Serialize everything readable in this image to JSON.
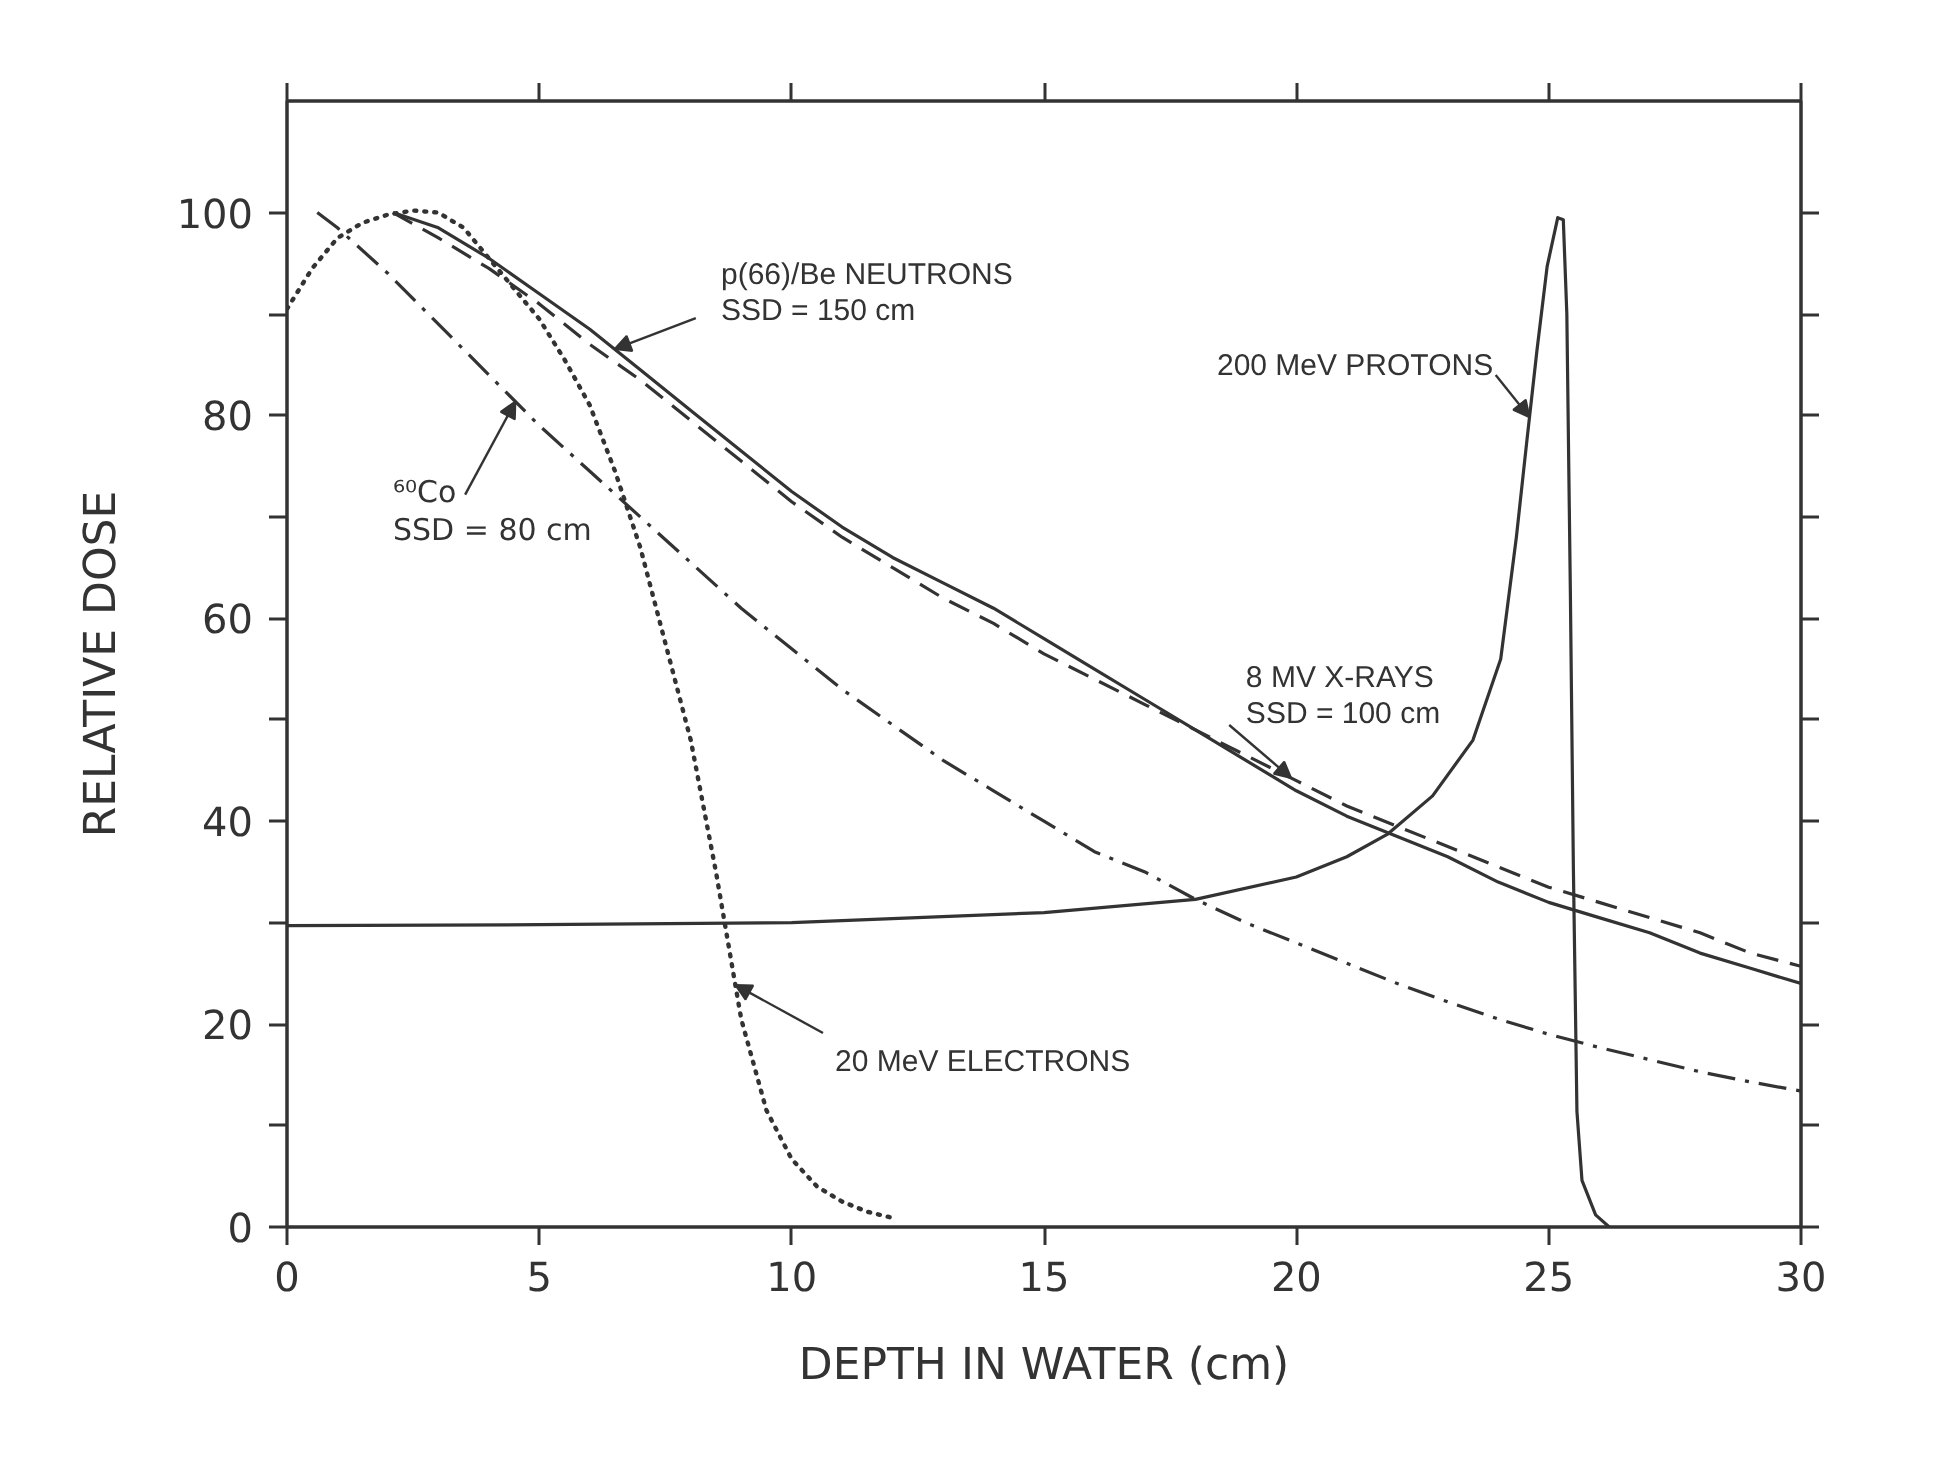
{
  "chart_data": {
    "type": "line",
    "xlabel": "DEPTH IN WATER (cm)",
    "ylabel": "RELATIVE DOSE",
    "xlim": [
      0,
      30
    ],
    "ylim": [
      0,
      111
    ],
    "xticks": [
      0,
      5,
      10,
      15,
      20,
      25,
      30
    ],
    "yticks": [
      0,
      {
        "value": 10,
        "label": null
      },
      20,
      {
        "value": 30,
        "label": null
      },
      40,
      {
        "value": 50,
        "label": null
      },
      60,
      {
        "value": 70,
        "label": null
      },
      80,
      {
        "value": 90,
        "label": null
      },
      100
    ],
    "series": [
      {
        "name": "200 MeV PROTONS",
        "color": "#333333",
        "line_style": "solid",
        "x": [
          0,
          5,
          10,
          15,
          18,
          20,
          21,
          21.8,
          22.7,
          23.5,
          24.05,
          24.36,
          24.57,
          24.77,
          24.97,
          25.18,
          25.29,
          25.36,
          25.43,
          25.49,
          25.56,
          25.66,
          25.93,
          26.2
        ],
        "values": [
          29.7,
          29.8,
          30,
          31,
          32.3,
          34.5,
          36.5,
          38.7,
          42.5,
          48,
          56,
          68,
          77.6,
          86.5,
          94.7,
          99.5,
          99.3,
          90,
          62.6,
          35.3,
          11.4,
          4.6,
          1.2,
          0
        ]
      },
      {
        "name": "p(66)/Be NEUTRONS\nSSD = 150 cm",
        "color": "#333333",
        "line_style": "solid",
        "x": [
          2.1,
          3,
          4,
          5,
          6,
          7,
          8,
          9,
          10,
          11,
          12,
          13,
          14,
          15,
          16,
          17,
          18,
          19,
          20,
          21,
          22,
          23,
          24,
          25,
          26,
          27,
          28,
          29,
          30
        ],
        "values": [
          100,
          98.5,
          95.5,
          92,
          88.5,
          84.5,
          80.5,
          76.5,
          72.5,
          69,
          66,
          63.5,
          61,
          58,
          55,
          52,
          49,
          46,
          43,
          40.5,
          38.5,
          36.5,
          34,
          32,
          30.5,
          29,
          27,
          25.5,
          24
        ]
      },
      {
        "name": "8 MV X-RAYS\nSSD = 100 cm",
        "color": "#333333",
        "line_style": "dashed",
        "x": [
          2.1,
          3,
          4,
          5,
          6,
          7,
          8,
          9,
          10,
          11,
          12,
          13,
          14,
          15,
          16,
          17,
          18,
          19,
          20,
          21,
          22,
          23,
          24,
          25,
          26,
          27,
          28,
          29,
          30
        ],
        "values": [
          100,
          97.5,
          94.5,
          91,
          87,
          83.5,
          79.5,
          75.5,
          71.5,
          68,
          65,
          62,
          59.5,
          56.5,
          54,
          51.5,
          49,
          46.5,
          44,
          41.5,
          39.5,
          37.5,
          35.5,
          33.5,
          32,
          30.5,
          29,
          27,
          25.7
        ]
      },
      {
        "name": "⁶⁰Co\nSSD = 80 cm",
        "color": "#333333",
        "line_style": "dashdot",
        "x": [
          0.6,
          1,
          2,
          3,
          4,
          5,
          6,
          7,
          8,
          9,
          10,
          11,
          12,
          13,
          14,
          15,
          16,
          17,
          18,
          19,
          20,
          21,
          22,
          23,
          24,
          25,
          26,
          27,
          28,
          29,
          30
        ],
        "values": [
          100,
          98.5,
          94,
          89,
          84,
          79,
          74.5,
          70,
          65.5,
          61,
          57,
          53,
          49.5,
          46,
          43,
          40,
          37,
          35,
          32.3,
          30,
          28,
          26,
          24,
          22.2,
          20.5,
          19,
          17.7,
          16.5,
          15.3,
          14.3,
          13.4
        ]
      },
      {
        "name": "20 MeV ELECTRONS",
        "color": "#333333",
        "line_style": "dotted",
        "x": [
          0,
          0.5,
          1,
          1.5,
          2,
          2.5,
          3,
          3.5,
          4,
          4.5,
          5,
          5.5,
          6,
          6.5,
          7,
          7.5,
          8,
          8.5,
          9,
          9.5,
          10,
          10.5,
          11,
          11.5,
          12
        ],
        "values": [
          90.5,
          94.5,
          97.5,
          99,
          99.8,
          100.2,
          100,
          98.5,
          95.5,
          92.5,
          89.5,
          85.5,
          81,
          74.5,
          67,
          57.5,
          48,
          35,
          20.5,
          11.5,
          6.7,
          4,
          2.5,
          1.5,
          0.9
        ]
      }
    ]
  }
}
